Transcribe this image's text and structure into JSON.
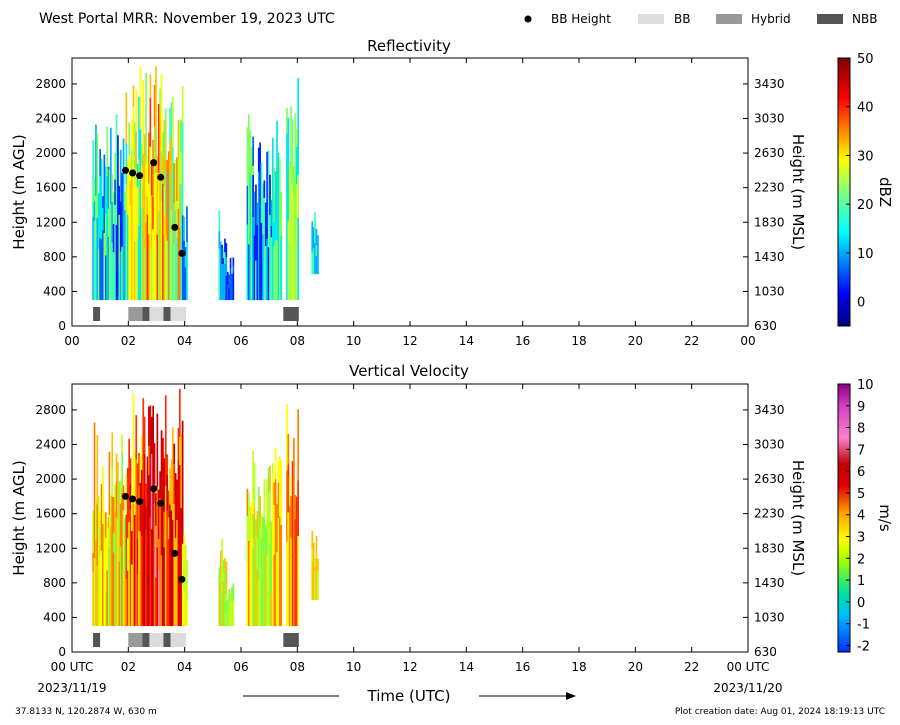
{
  "header": {
    "title": "West Portal MRR:  November 19, 2023 UTC",
    "legend": [
      {
        "label": "BB Height",
        "kind": "dot",
        "color": "#000000"
      },
      {
        "label": "BB",
        "kind": "box",
        "color": "#dcdcdc"
      },
      {
        "label": "Hybrid",
        "kind": "box",
        "color": "#999999"
      },
      {
        "label": "NBB",
        "kind": "box",
        "color": "#555555"
      }
    ]
  },
  "footer": {
    "location": "37.8133 N, 120.2874 W, 630 m",
    "created": "Plot creation date: Aug 01, 2024 18:19:13 UTC",
    "time_label": "Time (UTC)",
    "start_date": "2023/11/19",
    "end_date": "2023/11/20"
  },
  "chart_data": [
    {
      "type": "heatmap",
      "title": "Reflectivity",
      "ylabel": "Height (m AGL)",
      "ylabel_right": "Height (m MSL)",
      "x_ticks": [
        "00",
        "02",
        "04",
        "06",
        "08",
        "10",
        "12",
        "14",
        "16",
        "18",
        "20",
        "22",
        "00"
      ],
      "xlim": [
        0,
        24
      ],
      "ylim": [
        0,
        3100
      ],
      "y_ticks": [
        0,
        400,
        800,
        1200,
        1600,
        2000,
        2400,
        2800
      ],
      "y_ticks_right": [
        630,
        1030,
        1430,
        1830,
        2230,
        2630,
        3030,
        3430
      ],
      "colorbar": {
        "label": "dBZ",
        "min": -5,
        "max": 50,
        "ticks": [
          0,
          10,
          20,
          30,
          40,
          50
        ]
      },
      "bb_points": [
        {
          "hour": 1.9,
          "height": 1800
        },
        {
          "hour": 2.15,
          "height": 1770
        },
        {
          "hour": 2.4,
          "height": 1740
        },
        {
          "hour": 2.9,
          "height": 1890
        },
        {
          "hour": 3.15,
          "height": 1720
        },
        {
          "hour": 3.65,
          "height": 1140
        },
        {
          "hour": 3.9,
          "height": 840
        }
      ],
      "bb_segments": [
        {
          "start": 0.75,
          "end": 1.0,
          "kind": "NBB"
        },
        {
          "start": 2.0,
          "end": 2.5,
          "kind": "Hybrid"
        },
        {
          "start": 2.5,
          "end": 2.75,
          "kind": "NBB"
        },
        {
          "start": 2.75,
          "end": 3.25,
          "kind": "BB"
        },
        {
          "start": 3.25,
          "end": 3.5,
          "kind": "NBB"
        },
        {
          "start": 3.5,
          "end": 4.05,
          "kind": "BB"
        },
        {
          "start": 7.5,
          "end": 8.05,
          "kind": "NBB"
        }
      ]
    },
    {
      "type": "heatmap",
      "title": "Vertical Velocity",
      "ylabel": "Height (m AGL)",
      "ylabel_right": "Height (m MSL)",
      "xlabel": "Time (UTC)",
      "x_ticks": [
        "00 UTC",
        "02",
        "04",
        "06",
        "08",
        "10",
        "12",
        "14",
        "16",
        "18",
        "20",
        "22",
        "00 UTC"
      ],
      "xlim": [
        0,
        24
      ],
      "ylim": [
        0,
        3100
      ],
      "y_ticks": [
        0,
        400,
        800,
        1200,
        1600,
        2000,
        2400,
        2800
      ],
      "y_ticks_right": [
        630,
        1030,
        1430,
        1830,
        2230,
        2630,
        3030,
        3430
      ],
      "colorbar": {
        "label": "m/s",
        "min": -2.3,
        "max": 10,
        "ticks": [
          -2,
          -1,
          0,
          1,
          2,
          3,
          4,
          5,
          6,
          7,
          8,
          9,
          10
        ]
      },
      "bb_points": [
        {
          "hour": 1.9,
          "height": 1800
        },
        {
          "hour": 2.15,
          "height": 1770
        },
        {
          "hour": 2.4,
          "height": 1740
        },
        {
          "hour": 2.9,
          "height": 1890
        },
        {
          "hour": 3.15,
          "height": 1720
        },
        {
          "hour": 3.65,
          "height": 1140
        },
        {
          "hour": 3.9,
          "height": 840
        }
      ],
      "bb_segments": [
        {
          "start": 0.75,
          "end": 1.0,
          "kind": "NBB"
        },
        {
          "start": 2.0,
          "end": 2.5,
          "kind": "Hybrid"
        },
        {
          "start": 2.5,
          "end": 2.75,
          "kind": "NBB"
        },
        {
          "start": 2.75,
          "end": 3.25,
          "kind": "BB"
        },
        {
          "start": 3.25,
          "end": 3.5,
          "kind": "NBB"
        },
        {
          "start": 3.5,
          "end": 4.05,
          "kind": "BB"
        },
        {
          "start": 7.5,
          "end": 8.05,
          "kind": "NBB"
        }
      ]
    }
  ]
}
